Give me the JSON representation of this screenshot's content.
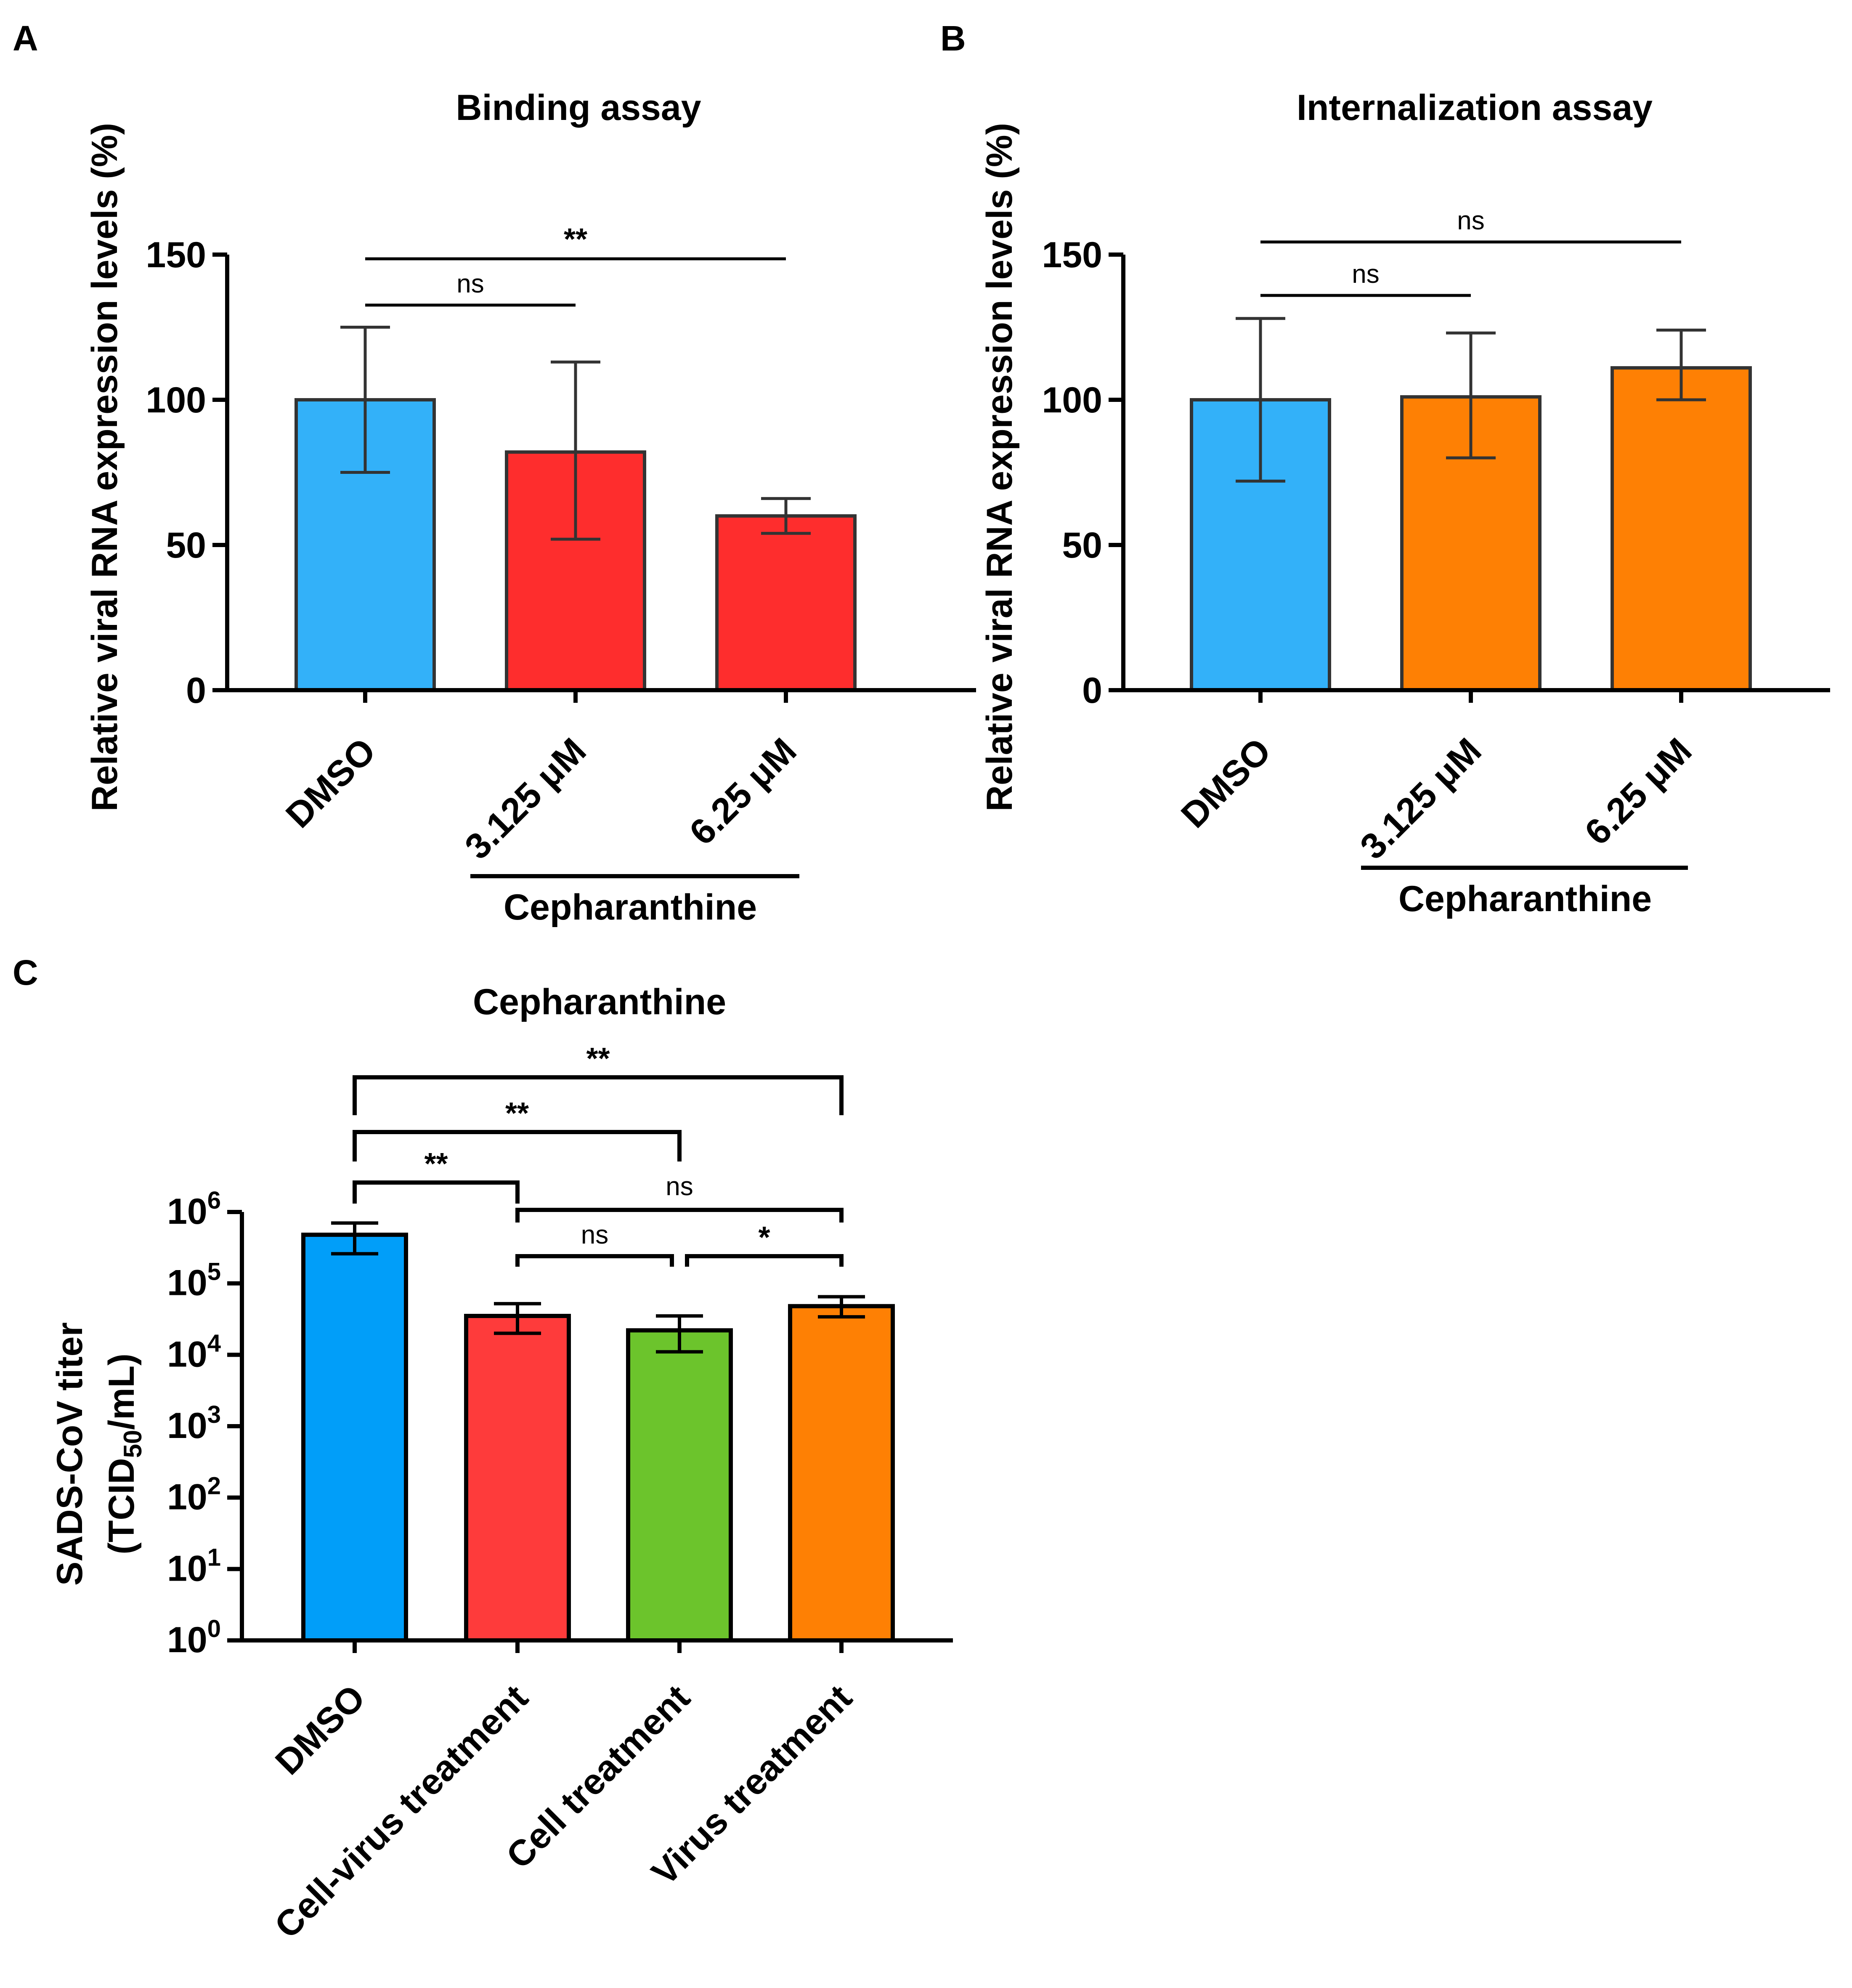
{
  "chart_data": [
    {
      "panel": "A",
      "type": "bar",
      "title": "Binding assay",
      "ylabel": "Relative viral RNA expression levels (%)",
      "ylim": [
        0,
        150
      ],
      "yticks": [
        "0",
        "50",
        "100",
        "150"
      ],
      "ytick_values": [
        0,
        50,
        100,
        150
      ],
      "categories": [
        "DMSO",
        "3.125 μM",
        "6.25 μM"
      ],
      "values": [
        100,
        82,
        60
      ],
      "error_upper": [
        125,
        113,
        66
      ],
      "error_lower": [
        75,
        52,
        54
      ],
      "colors": [
        "#33b1f9",
        "#fe2d2d",
        "#fe2d2d"
      ],
      "group_label": "Cepharanthine",
      "comparisons": [
        {
          "from": 0,
          "to": 1,
          "label": "ns"
        },
        {
          "from": 0,
          "to": 2,
          "label": "**"
        }
      ]
    },
    {
      "panel": "B",
      "type": "bar",
      "title": "Internalization assay",
      "ylabel": "Relative viral RNA expression levels (%)",
      "ylim": [
        0,
        150
      ],
      "yticks": [
        "0",
        "50",
        "100",
        "150"
      ],
      "ytick_values": [
        0,
        50,
        100,
        150
      ],
      "categories": [
        "DMSO",
        "3.125 μM",
        "6.25 μM"
      ],
      "values": [
        100,
        101,
        111
      ],
      "error_upper": [
        128,
        123,
        124
      ],
      "error_lower": [
        72,
        80,
        100
      ],
      "colors": [
        "#33b1f9",
        "#fe8004",
        "#fe8004"
      ],
      "group_label": "Cepharanthine",
      "comparisons": [
        {
          "from": 0,
          "to": 1,
          "label": "ns"
        },
        {
          "from": 0,
          "to": 2,
          "label": "ns"
        }
      ]
    },
    {
      "panel": "C",
      "type": "bar",
      "title": "Cepharanthine",
      "ylabel_line1": "SADS-CoV titer",
      "ylabel_line2_pre": "(TCID",
      "ylabel_line2_sub": "50",
      "ylabel_line2_post": "/mL)",
      "yscale": "log10",
      "ylim_log10": [
        0,
        6
      ],
      "ytick_base": "10",
      "ytick_exponents": [
        "0",
        "1",
        "2",
        "3",
        "4",
        "5",
        "6"
      ],
      "categories": [
        "DMSO",
        "Cell-virus treatment",
        "Cell treatment",
        "Virus treatment"
      ],
      "values": [
        480000,
        35000,
        22000,
        48000
      ],
      "error_upper": [
        700000,
        52000,
        35000,
        65000
      ],
      "error_lower": [
        260000,
        20000,
        11000,
        34000
      ],
      "colors": [
        "#019ef9",
        "#fe3b3b",
        "#6cc42c",
        "#fe8004"
      ],
      "comparisons": [
        {
          "from": 0,
          "to": 3,
          "label": "**"
        },
        {
          "from": 0,
          "to": 2,
          "label": "**"
        },
        {
          "from": 0,
          "to": 1,
          "label": "**"
        },
        {
          "from": 1,
          "to": 3,
          "label": "ns"
        },
        {
          "from": 1,
          "to": 2,
          "label": "ns"
        },
        {
          "from": 2,
          "to": 3,
          "label": "*"
        }
      ]
    }
  ]
}
